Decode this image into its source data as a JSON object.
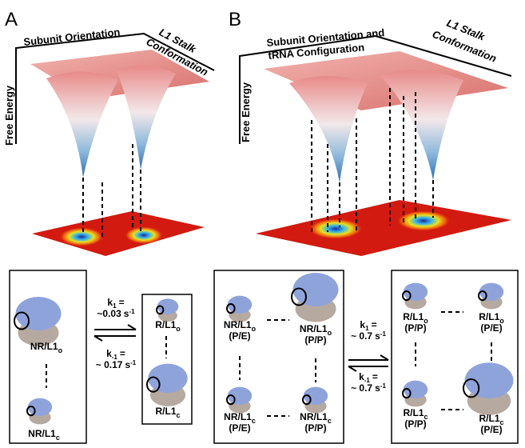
{
  "panels": [
    {
      "label": "A",
      "x_axis": [
        "Subunit Orientation"
      ],
      "y_axis": [
        "L1 Stalk",
        "Conformation"
      ],
      "z_axis": "Free Energy"
    },
    {
      "label": "B",
      "x_axis": [
        "Subunit Orientation and",
        "tRNA Configuration"
      ],
      "y_axis": [
        "L1 Stalk",
        "Conformation"
      ],
      "z_axis": "Free Energy"
    }
  ],
  "states": {
    "a_nr_o": {
      "name": "NR/L1",
      "sub": "o"
    },
    "a_nr_c": {
      "name": "NR/L1",
      "sub": "c"
    },
    "a_r_o": {
      "name": "R/L1",
      "sub": "o"
    },
    "a_r_c": {
      "name": "R/L1",
      "sub": "c"
    },
    "b_nr_o_pe": {
      "name": "NR/L1",
      "sub": "o",
      "trna": "(P/E)"
    },
    "b_nr_o_pp": {
      "name": "NR/L1",
      "sub": "o",
      "trna": "(P/P)"
    },
    "b_nr_c_pe": {
      "name": "NR/L1",
      "sub": "c",
      "trna": "(P/E)"
    },
    "b_nr_c_pp": {
      "name": "NR/L1",
      "sub": "c",
      "trna": "(P/P)"
    },
    "b_r_o_pp": {
      "name": "R/L1",
      "sub": "o",
      "trna": "(P/P)"
    },
    "b_r_o_pe": {
      "name": "R/L1",
      "sub": "o",
      "trna": "(P/E)"
    },
    "b_r_c_pp": {
      "name": "R/L1",
      "sub": "c",
      "trna": "(P/P)"
    },
    "b_r_c_pe": {
      "name": "R/L1",
      "sub": "c",
      "trna": "(P/E)"
    }
  },
  "rates": {
    "a_forward": {
      "symbol": "k",
      "index": "1",
      "sign": "=",
      "value": "~0.03",
      "unit": "s",
      "power": "-1"
    },
    "a_reverse": {
      "symbol": "k",
      "index": "-1",
      "sign": "=",
      "value": "~ 0.17",
      "unit": "s",
      "power": "-1"
    },
    "b_forward": {
      "symbol": "k",
      "index": "1",
      "sign": "=",
      "value": "~ 0.7",
      "unit": "s",
      "power": "-1"
    },
    "b_reverse": {
      "symbol": "k",
      "index": "-1",
      "sign": "=",
      "value": "~ 0.7",
      "unit": "s",
      "power": "-1"
    }
  }
}
